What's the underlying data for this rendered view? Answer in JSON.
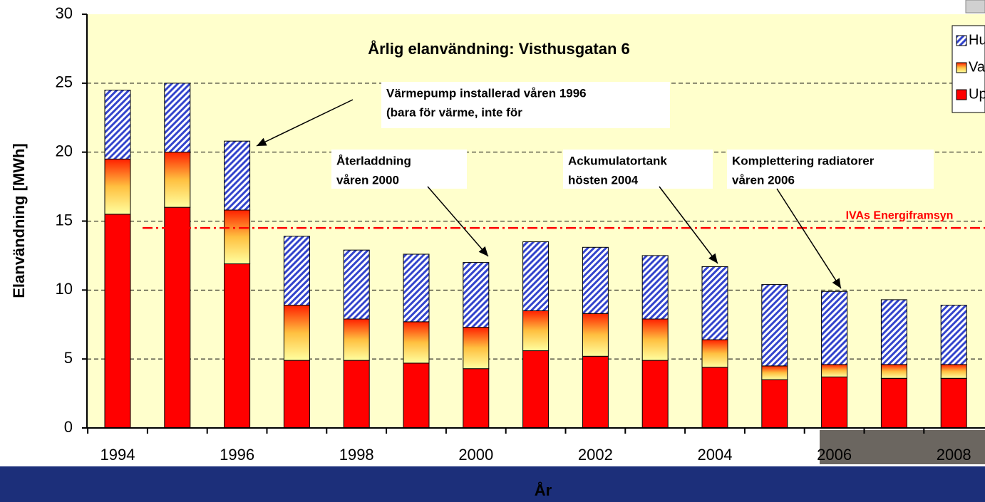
{
  "chart_data": {
    "type": "stacked_bar",
    "title": "Årlig elanvändning: Visthusgatan 6",
    "y_label": "Elanvändning [MWh]",
    "x_label": "År",
    "categories": [
      "1994",
      null,
      "1996",
      null,
      "1998",
      null,
      "2000",
      null,
      "2002",
      null,
      "2004",
      null,
      "2006",
      null,
      "2008"
    ],
    "series": [
      {
        "name": "Uppvärmning",
        "color": "#ff0000",
        "style": "solid",
        "values": [
          15.5,
          16.0,
          11.9,
          4.9,
          4.9,
          4.7,
          4.3,
          5.6,
          5.2,
          4.9,
          4.4,
          3.5,
          3.7,
          3.6,
          3.6
        ]
      },
      {
        "name": "Varmvatten",
        "color": "#ffcc33",
        "style": "gradient",
        "values": [
          4.0,
          4.0,
          3.9,
          4.0,
          3.0,
          3.0,
          3.0,
          2.9,
          3.1,
          3.0,
          2.0,
          1.0,
          0.9,
          1.0,
          1.0
        ]
      },
      {
        "name": "Hushållsel",
        "color": "#3344cc",
        "style": "hatch",
        "values": [
          5.0,
          5.0,
          5.0,
          5.0,
          5.0,
          4.9,
          4.7,
          5.0,
          4.8,
          4.6,
          5.3,
          5.9,
          5.3,
          4.7,
          4.3
        ]
      }
    ],
    "ylim": [
      0,
      30
    ],
    "yticks": [
      0,
      5,
      10,
      15,
      20,
      25,
      30
    ],
    "grid": true,
    "legend": "top-right",
    "reference_line": {
      "value": 14.5,
      "label": "IVAs Energiframsyn",
      "color": "#ff0000"
    },
    "annotations": [
      {
        "lines": [
          "Värmepump installerad våren 1996",
          "(bara för värme, inte för"
        ]
      },
      {
        "lines": [
          "Återladdning",
          "våren 2000"
        ]
      },
      {
        "lines": [
          "Ackumulatortank",
          "hösten 2004"
        ]
      },
      {
        "lines": [
          "Komplettering radiatorer",
          "våren 2006"
        ]
      }
    ]
  }
}
